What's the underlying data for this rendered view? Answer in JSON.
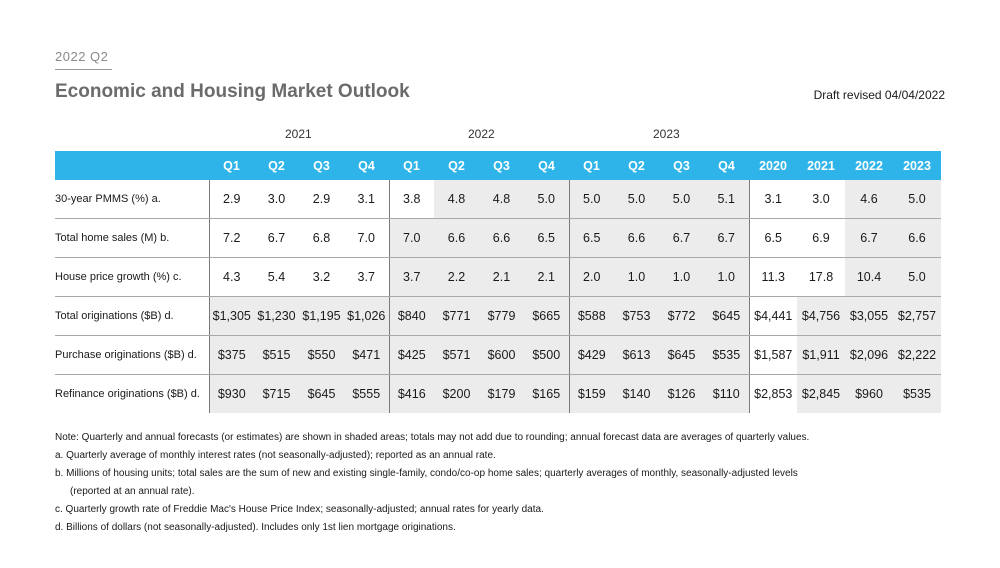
{
  "header": {
    "kicker": "2022 Q2",
    "title": "Economic and Housing Market Outlook",
    "draft": "Draft revised 04/04/2022"
  },
  "years": [
    "2021",
    "2022",
    "2023"
  ],
  "columns": [
    "Q1",
    "Q2",
    "Q3",
    "Q4",
    "Q1",
    "Q2",
    "Q3",
    "Q4",
    "Q1",
    "Q2",
    "Q3",
    "Q4",
    "2020",
    "2021",
    "2022",
    "2023"
  ],
  "rows": [
    {
      "label": "30-year PMMS (%) a.",
      "values": [
        "2.9",
        "3.0",
        "2.9",
        "3.1",
        "3.8",
        "4.8",
        "4.8",
        "5.0",
        "5.0",
        "5.0",
        "5.0",
        "5.1",
        "3.1",
        "3.0",
        "4.6",
        "5.0"
      ]
    },
    {
      "label": "Total home sales (M) b.",
      "values": [
        "7.2",
        "6.7",
        "6.8",
        "7.0",
        "7.0",
        "6.6",
        "6.6",
        "6.5",
        "6.5",
        "6.6",
        "6.7",
        "6.7",
        "6.5",
        "6.9",
        "6.7",
        "6.6"
      ]
    },
    {
      "label": "House price growth (%) c.",
      "values": [
        "4.3",
        "5.4",
        "3.2",
        "3.7",
        "3.7",
        "2.2",
        "2.1",
        "2.1",
        "2.0",
        "1.0",
        "1.0",
        "1.0",
        "11.3",
        "17.8",
        "10.4",
        "5.0"
      ]
    },
    {
      "label": "Total originations ($B) d.",
      "values": [
        "$1,305",
        "$1,230",
        "$1,195",
        "$1,026",
        "$840",
        "$771",
        "$779",
        "$665",
        "$588",
        "$753",
        "$772",
        "$645",
        "$4,441",
        "$4,756",
        "$3,055",
        "$2,757"
      ]
    },
    {
      "label": "Purchase originations ($B) d.",
      "values": [
        "$375",
        "$515",
        "$550",
        "$471",
        "$425",
        "$571",
        "$600",
        "$500",
        "$429",
        "$613",
        "$645",
        "$535",
        "$1,587",
        "$1,911",
        "$2,096",
        "$2,222"
      ]
    },
    {
      "label": "Refinance originations ($B) d.",
      "values": [
        "$930",
        "$715",
        "$645",
        "$555",
        "$416",
        "$200",
        "$179",
        "$165",
        "$159",
        "$140",
        "$126",
        "$110",
        "$2,853",
        "$2,845",
        "$960",
        "$535"
      ]
    }
  ],
  "notes": {
    "main": "Note: Quarterly and annual forecasts (or estimates) are shown in shaded areas; totals may not add due to rounding; annual forecast data are averages of quarterly values.",
    "a": "a. Quarterly average of monthly interest rates (not seasonally-adjusted); reported as an annual rate.",
    "b1": "b. Millions of housing units; total sales are the sum of new and existing single-family, condo/co-op home sales; quarterly averages of monthly, seasonally-adjusted levels",
    "b2": "(reported at an annual rate).",
    "c": "c. Quarterly growth rate of Freddie Mac's House Price Index; seasonally-adjusted; annual rates for yearly data.",
    "d": "d. Billions of dollars (not seasonally-adjusted). Includes only 1st lien mortgage originations."
  }
}
